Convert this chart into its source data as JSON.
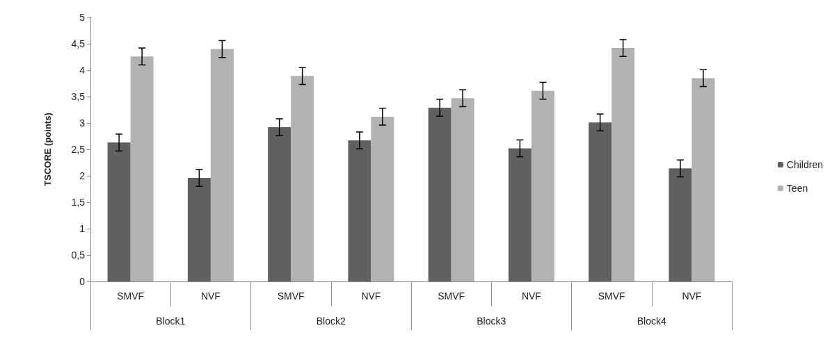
{
  "chart_data": {
    "type": "bar",
    "ylabel": "TSCORE (points)",
    "categories": [
      "SMVF",
      "NVF",
      "SMVF",
      "NVF",
      "SMVF",
      "NVF",
      "SMVF",
      "NVF"
    ],
    "annotations": [
      "Block1",
      "Block2",
      "Block3",
      "Block4"
    ],
    "series": [
      {
        "name": "Children",
        "color": "#606060",
        "values": [
          2.63,
          1.96,
          2.92,
          2.67,
          3.29,
          2.52,
          3.01,
          2.14
        ],
        "errors": [
          0.16,
          0.16,
          0.16,
          0.16,
          0.16,
          0.16,
          0.16,
          0.16
        ]
      },
      {
        "name": "Teen",
        "color": "#b2b2b2",
        "values": [
          4.26,
          4.4,
          3.89,
          3.12,
          3.47,
          3.61,
          4.42,
          3.85
        ],
        "errors": [
          0.16,
          0.16,
          0.16,
          0.16,
          0.16,
          0.16,
          0.16,
          0.16
        ]
      }
    ],
    "ylim": [
      0,
      5
    ],
    "yticks": [
      0,
      {
        "value": 0.5,
        "label": "0,5"
      },
      1,
      {
        "value": 1.5,
        "label": "1,5"
      },
      2,
      {
        "value": 2.5,
        "label": "2,5"
      },
      3,
      {
        "value": 3.5,
        "label": "3,5"
      },
      4,
      {
        "value": 4.5,
        "label": "4,5"
      },
      5
    ],
    "grid": false,
    "legend": "right"
  }
}
